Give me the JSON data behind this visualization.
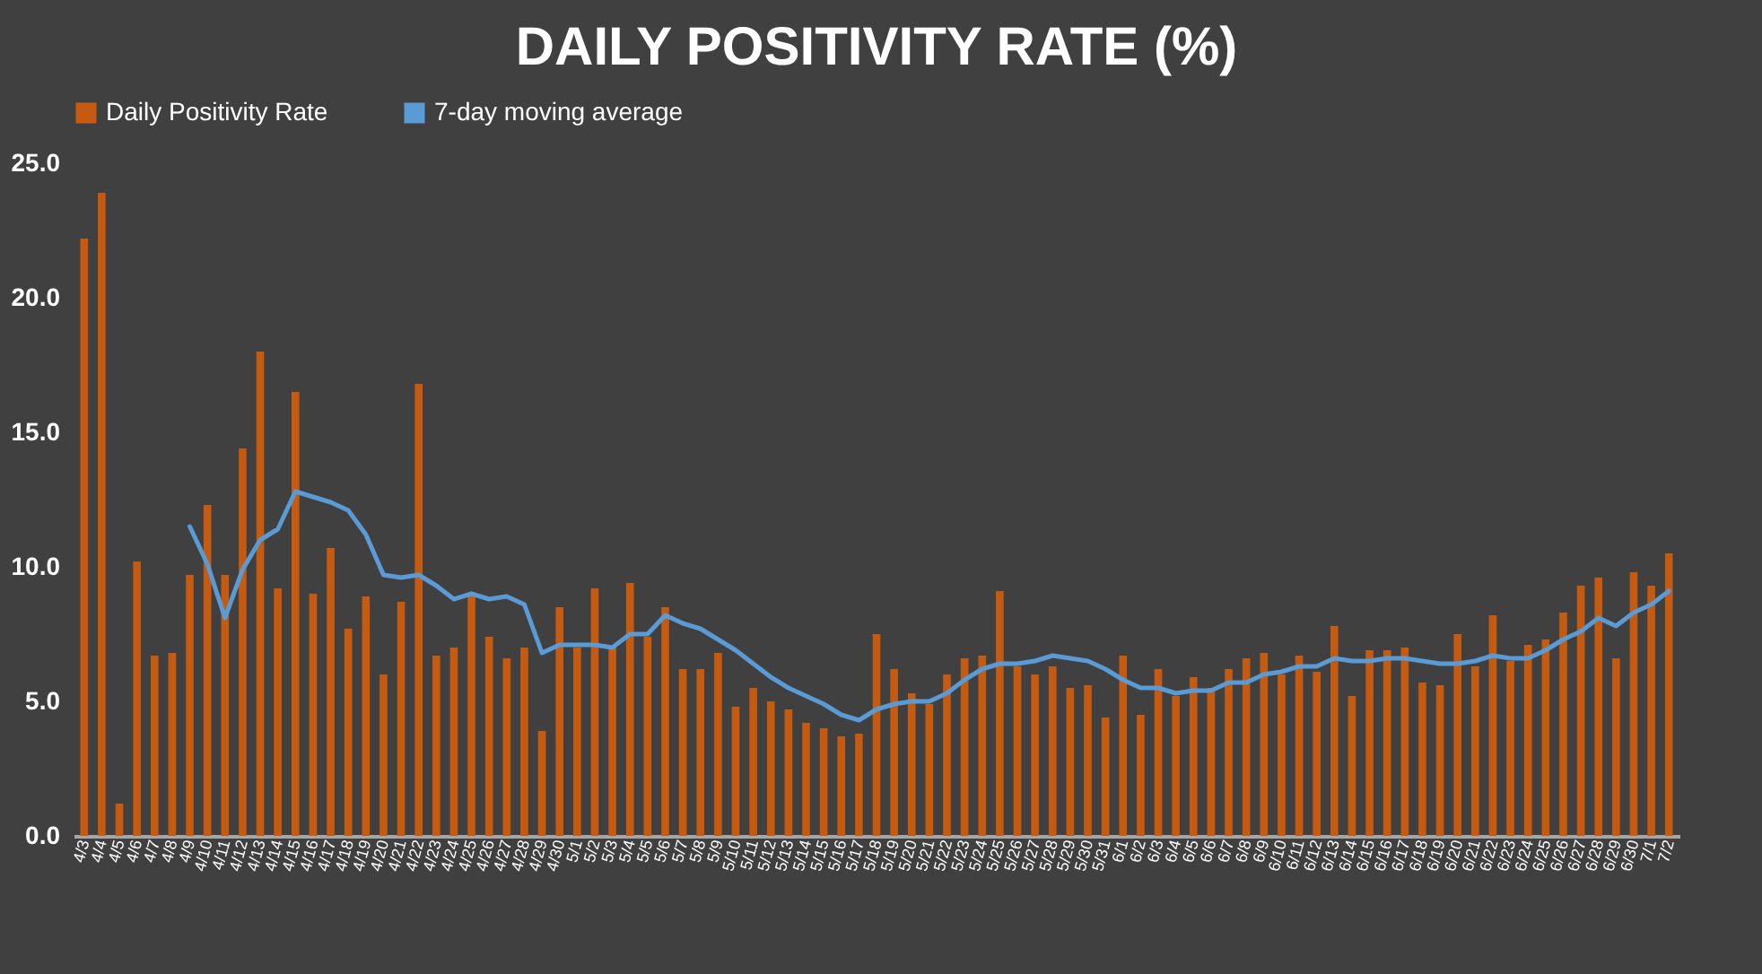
{
  "chart_data": {
    "type": "bar",
    "title": "DAILY POSITIVITY RATE (%)",
    "categories": [
      "4/3",
      "4/4",
      "4/5",
      "4/6",
      "4/7",
      "4/8",
      "4/9",
      "4/10",
      "4/11",
      "4/12",
      "4/13",
      "4/14",
      "4/15",
      "4/16",
      "4/17",
      "4/18",
      "4/19",
      "4/20",
      "4/21",
      "4/22",
      "4/23",
      "4/24",
      "4/25",
      "4/26",
      "4/27",
      "4/28",
      "4/29",
      "4/30",
      "5/1",
      "5/2",
      "5/3",
      "5/4",
      "5/5",
      "5/6",
      "5/7",
      "5/8",
      "5/9",
      "5/10",
      "5/11",
      "5/12",
      "5/13",
      "5/14",
      "5/15",
      "5/16",
      "5/17",
      "5/18",
      "5/19",
      "5/20",
      "5/21",
      "5/22",
      "5/23",
      "5/24",
      "5/25",
      "5/26",
      "5/27",
      "5/28",
      "5/29",
      "5/30",
      "5/31",
      "6/1",
      "6/2",
      "6/3",
      "6/4",
      "6/5",
      "6/6",
      "6/7",
      "6/8",
      "6/9",
      "6/10",
      "6/11",
      "6/12",
      "6/13",
      "6/14",
      "6/15",
      "6/16",
      "6/17",
      "6/18",
      "6/19",
      "6/20",
      "6/21",
      "6/22",
      "6/23",
      "6/24",
      "6/25",
      "6/26",
      "6/27",
      "6/28",
      "6/29",
      "6/30",
      "7/1",
      "7/2"
    ],
    "series": [
      {
        "name": "Daily Positivity Rate",
        "color": "#c55a11",
        "values": [
          22.2,
          23.9,
          1.2,
          10.2,
          6.7,
          6.8,
          9.7,
          12.3,
          9.7,
          14.4,
          18.0,
          9.2,
          16.5,
          9.0,
          10.7,
          7.7,
          8.9,
          6.0,
          8.7,
          16.8,
          6.7,
          7.0,
          9.0,
          7.4,
          6.6,
          7.0,
          3.9,
          8.5,
          7.0,
          9.2,
          7.0,
          9.4,
          7.4,
          8.5,
          6.2,
          6.2,
          6.8,
          4.8,
          5.5,
          5.0,
          4.7,
          4.2,
          4.0,
          3.7,
          3.8,
          7.5,
          6.2,
          5.3,
          4.9,
          6.0,
          6.6,
          6.7,
          9.1,
          6.3,
          6.0,
          6.3,
          5.5,
          5.6,
          4.4,
          6.7,
          4.5,
          6.2,
          5.2,
          5.9,
          5.5,
          6.2,
          6.6,
          6.8,
          6.0,
          6.7,
          6.1,
          7.8,
          5.2,
          6.9,
          6.9,
          7.0,
          5.7,
          5.6,
          7.5,
          6.3,
          8.2,
          6.5,
          7.1,
          7.3,
          8.3,
          9.3,
          9.6,
          6.6,
          9.8,
          9.3,
          10.5
        ]
      },
      {
        "name": "7-day moving average",
        "type": "line",
        "color": "#5b9bd5",
        "values": [
          null,
          null,
          null,
          null,
          null,
          null,
          11.5,
          10.1,
          8.1,
          9.9,
          11.0,
          11.4,
          12.8,
          12.6,
          12.4,
          12.1,
          11.2,
          9.7,
          9.6,
          9.7,
          9.3,
          8.8,
          9.0,
          8.8,
          8.9,
          8.6,
          6.8,
          7.1,
          7.1,
          7.1,
          7.0,
          7.5,
          7.5,
          8.2,
          7.9,
          7.7,
          7.3,
          6.9,
          6.4,
          5.9,
          5.5,
          5.2,
          4.9,
          4.5,
          4.3,
          4.7,
          4.9,
          5.0,
          5.0,
          5.3,
          5.8,
          6.2,
          6.4,
          6.4,
          6.5,
          6.7,
          6.6,
          6.5,
          6.2,
          5.8,
          5.5,
          5.5,
          5.3,
          5.4,
          5.4,
          5.7,
          5.7,
          6.0,
          6.1,
          6.3,
          6.3,
          6.6,
          6.5,
          6.5,
          6.6,
          6.6,
          6.5,
          6.4,
          6.4,
          6.5,
          6.7,
          6.6,
          6.6,
          6.9,
          7.3,
          7.6,
          8.1,
          7.8,
          8.3,
          8.6,
          9.1
        ]
      }
    ],
    "ylim": [
      0,
      25
    ],
    "yticks": [
      {
        "value": 0,
        "label": "0.0"
      },
      {
        "value": 5,
        "label": "5.0"
      },
      {
        "value": 10,
        "label": "10.0"
      },
      {
        "value": 15,
        "label": "15.0"
      },
      {
        "value": 20,
        "label": "20.0"
      },
      {
        "value": 25,
        "label": "25.0"
      }
    ],
    "legend": "top"
  }
}
